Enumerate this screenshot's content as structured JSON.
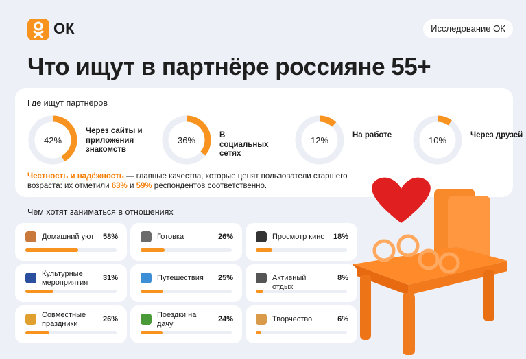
{
  "header": {
    "logo": "ОК",
    "badge": "Исследование ОК"
  },
  "title": "Что ищут в партнёре россияне 55+",
  "where": {
    "heading": "Где ищут партнёров",
    "items": [
      {
        "label": "Через сайты и приложения знакомств",
        "value": 42,
        "value_label": "42%"
      },
      {
        "label": "В социальных сетях",
        "value": 36,
        "value_label": "36%"
      },
      {
        "label": "На работе",
        "value": 12,
        "value_label": "12%"
      },
      {
        "label": "Через друзей",
        "value": 10,
        "value_label": "10%"
      }
    ]
  },
  "note": {
    "highlight": "Честность и надёжность",
    "text1": " — главные качества, которые ценят пользователи старшего возраста: их отметили ",
    "p1": "63%",
    "and": " и ",
    "p2": "59%",
    "text2": " респондентов соответственно."
  },
  "activities": {
    "heading": "Чем хотят заниматься в отношениях",
    "items": [
      {
        "label": "Домашний уют",
        "value": 58,
        "value_label": "58%"
      },
      {
        "label": "Готовка",
        "value": 26,
        "value_label": "26%"
      },
      {
        "label": "Просмотр кино",
        "value": 18,
        "value_label": "18%"
      },
      {
        "label": "Культурные мероприятия",
        "value": 31,
        "value_label": "31%"
      },
      {
        "label": "Путешествия",
        "value": 25,
        "value_label": "25%"
      },
      {
        "label": "Активный отдых",
        "value": 8,
        "value_label": "8%"
      },
      {
        "label": "Совместные праздники",
        "value": 26,
        "value_label": "26%"
      },
      {
        "label": "Поездки на дачу",
        "value": 24,
        "value_label": "24%"
      },
      {
        "label": "Творчество",
        "value": 6,
        "value_label": "6%"
      }
    ]
  }
}
